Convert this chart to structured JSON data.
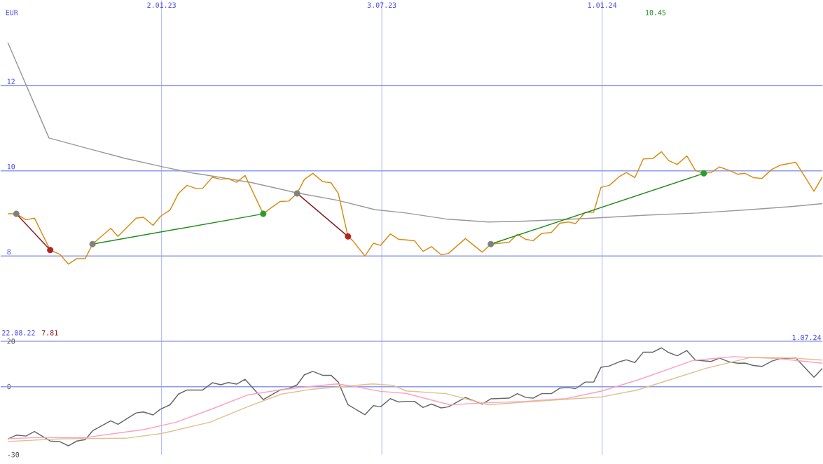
{
  "chart_data": [
    {
      "type": "line",
      "ylabel": "EUR",
      "xlim": [
        "2022-08-22",
        "2024-07-01"
      ],
      "xticks": [
        {
          "value": "2023-01-02",
          "label": "2.01.23"
        },
        {
          "value": "2023-07-03",
          "label": "3.07.23"
        },
        {
          "value": "2024-01-01",
          "label": "1.01.24"
        }
      ],
      "ylim": [
        6,
        14
      ],
      "yticks": [
        8,
        10,
        12
      ],
      "grid": true,
      "annotations": [
        "22.08.22",
        "7.81",
        "10.45",
        "1.07.24"
      ],
      "series": [
        {
          "color": "#999999",
          "x": [
            "2022-08-28",
            "2022-10-01",
            "2022-10-31",
            "2022-12-03",
            "2023-01-02",
            "2023-01-29",
            "2023-02-06",
            "2023-03-18",
            "2023-04-24",
            "2023-05-27",
            "2023-06-27",
            "2023-07-23",
            "2023-08-25",
            "2023-09-29",
            "2023-10-30",
            "2023-12-24",
            "2024-02-06",
            "2024-03-20",
            "2024-05-03",
            "2024-06-05",
            "2024-07-01"
          ],
          "values": [
            13.01,
            10.77,
            10.54,
            10.29,
            10.1,
            9.94,
            9.91,
            9.72,
            9.48,
            9.31,
            9.09,
            9.01,
            8.87,
            8.8,
            8.82,
            8.89,
            8.96,
            9.01,
            9.09,
            9.16,
            9.23
          ]
        },
        {
          "color": "#d98c10",
          "x": [
            "2022-08-28",
            "2022-09-04",
            "2022-09-12",
            "2022-09-19",
            "2022-10-02",
            "2022-10-10",
            "2022-10-17",
            "2022-10-24",
            "2022-10-31",
            "2022-11-06",
            "2022-11-21",
            "2022-11-27",
            "2022-12-12",
            "2022-12-18",
            "2022-12-26",
            "2023-01-01",
            "2023-01-09",
            "2023-01-16",
            "2023-01-23",
            "2023-01-30",
            "2023-02-05",
            "2023-02-13",
            "2023-02-20",
            "2023-02-26",
            "2023-03-05",
            "2023-03-12",
            "2023-03-27",
            "2023-04-02",
            "2023-04-10",
            "2023-04-17",
            "2023-04-24",
            "2023-04-30",
            "2023-05-07",
            "2023-05-15",
            "2023-05-22",
            "2023-05-28",
            "2023-06-05",
            "2023-06-09",
            "2023-06-19",
            "2023-06-26",
            "2023-07-02",
            "2023-07-10",
            "2023-07-17",
            "2023-07-23",
            "2023-07-30",
            "2023-08-06",
            "2023-08-13",
            "2023-08-21",
            "2023-08-27",
            "2023-09-10",
            "2023-09-24",
            "2023-10-01",
            "2023-10-16",
            "2023-10-23",
            "2023-10-30",
            "2023-11-05",
            "2023-11-12",
            "2023-11-20",
            "2023-11-27",
            "2023-12-04",
            "2023-12-10",
            "2023-12-18",
            "2023-12-25",
            "2023-12-31",
            "2024-01-07",
            "2024-01-15",
            "2024-01-21",
            "2024-01-28",
            "2024-02-04",
            "2024-02-12",
            "2024-02-19",
            "2024-02-25",
            "2024-03-03",
            "2024-03-11",
            "2024-03-18",
            "2024-03-25",
            "2024-03-31",
            "2024-04-07",
            "2024-04-15",
            "2024-04-22",
            "2024-04-28",
            "2024-05-05",
            "2024-05-12",
            "2024-05-20",
            "2024-05-27",
            "2024-06-09",
            "2024-06-24",
            "2024-07-01"
          ],
          "values": [
            8.99,
            8.99,
            8.85,
            8.89,
            8.14,
            8.04,
            7.81,
            7.94,
            7.94,
            8.28,
            8.65,
            8.46,
            8.89,
            8.91,
            8.72,
            8.93,
            9.08,
            9.47,
            9.66,
            9.59,
            9.59,
            9.85,
            9.8,
            9.82,
            9.73,
            9.89,
            8.99,
            9.12,
            9.28,
            9.29,
            9.47,
            9.8,
            9.94,
            9.75,
            9.72,
            9.47,
            8.46,
            8.36,
            8.0,
            8.3,
            8.25,
            8.52,
            8.39,
            8.38,
            8.36,
            8.11,
            8.22,
            8.03,
            8.06,
            8.41,
            8.09,
            8.28,
            8.32,
            8.51,
            8.39,
            8.36,
            8.53,
            8.55,
            8.77,
            8.8,
            8.76,
            9.03,
            9.03,
            9.61,
            9.66,
            9.86,
            9.96,
            9.84,
            10.28,
            10.29,
            10.45,
            10.24,
            10.15,
            10.35,
            10.01,
            9.94,
            9.96,
            10.09,
            10.01,
            9.92,
            9.94,
            9.84,
            9.82,
            10.03,
            10.13,
            10.2,
            9.52,
            9.86
          ]
        },
        {
          "color": "#8b1a1a",
          "x": [
            "2022-09-04",
            "2022-10-02"
          ],
          "values": [
            8.99,
            8.14
          ]
        },
        {
          "color": "#1e8c1e",
          "x": [
            "2022-11-06",
            "2023-03-27"
          ],
          "values": [
            8.28,
            8.99
          ]
        },
        {
          "color": "#8b1a1a",
          "x": [
            "2023-04-24",
            "2023-06-05"
          ],
          "values": [
            9.47,
            8.46
          ]
        },
        {
          "color": "#1e8c1e",
          "x": [
            "2023-10-01",
            "2024-03-25"
          ],
          "values": [
            8.28,
            9.94
          ]
        },
        {
          "type": "scatter",
          "marker": "circle",
          "color": "#808080",
          "x": [
            "2022-09-04",
            "2022-11-06",
            "2023-04-24",
            "2023-10-01"
          ],
          "values": [
            8.99,
            8.28,
            9.47,
            8.28
          ]
        },
        {
          "type": "scatter",
          "marker": "circle",
          "color": "#b22222",
          "x": [
            "2022-10-02",
            "2023-06-05"
          ],
          "values": [
            8.14,
            8.46
          ]
        },
        {
          "type": "scatter",
          "marker": "circle",
          "color": "#2a9d2a",
          "x": [
            "2023-03-27",
            "2024-03-25"
          ],
          "values": [
            8.99,
            9.94
          ]
        }
      ]
    },
    {
      "type": "line",
      "tick_labels": "y",
      "xlim": [
        "2022-08-22",
        "2024-07-01"
      ],
      "xticks": [
        {
          "value": "2023-01-02",
          "label": null
        },
        {
          "value": "2023-07-03",
          "label": null
        },
        {
          "value": "2024-01-01",
          "label": null
        }
      ],
      "ylim": [
        -30,
        20
      ],
      "yticks": [
        -30,
        0,
        20
      ],
      "grid": "x",
      "ref_lines": [
        {
          "axis": "y",
          "value": 0,
          "color": "#8c9cf0"
        }
      ],
      "series": [
        {
          "color": "#666666",
          "x": [
            "2022-08-28",
            "2022-09-04",
            "2022-09-12",
            "2022-09-19",
            "2022-10-02",
            "2022-10-10",
            "2022-10-17",
            "2022-10-24",
            "2022-10-31",
            "2022-11-06",
            "2022-11-21",
            "2022-11-27",
            "2022-12-12",
            "2022-12-18",
            "2022-12-26",
            "2023-01-01",
            "2023-01-09",
            "2023-01-16",
            "2023-01-23",
            "2023-02-05",
            "2023-02-13",
            "2023-02-20",
            "2023-02-26",
            "2023-03-05",
            "2023-03-12",
            "2023-03-27",
            "2023-04-10",
            "2023-04-17",
            "2023-04-24",
            "2023-04-30",
            "2023-05-07",
            "2023-05-15",
            "2023-05-22",
            "2023-05-28",
            "2023-06-05",
            "2023-06-19",
            "2023-06-26",
            "2023-07-02",
            "2023-07-10",
            "2023-07-17",
            "2023-07-23",
            "2023-07-30",
            "2023-08-06",
            "2023-08-13",
            "2023-08-21",
            "2023-08-27",
            "2023-09-10",
            "2023-09-24",
            "2023-10-01",
            "2023-10-16",
            "2023-10-23",
            "2023-10-30",
            "2023-11-05",
            "2023-11-12",
            "2023-11-20",
            "2023-11-27",
            "2023-12-04",
            "2023-12-10",
            "2023-12-18",
            "2023-12-25",
            "2023-12-31",
            "2024-01-07",
            "2024-01-15",
            "2024-01-21",
            "2024-01-28",
            "2024-02-04",
            "2024-02-12",
            "2024-02-19",
            "2024-02-25",
            "2024-03-03",
            "2024-03-11",
            "2024-03-18",
            "2024-03-31",
            "2024-04-07",
            "2024-04-15",
            "2024-04-22",
            "2024-04-28",
            "2024-05-05",
            "2024-05-12",
            "2024-05-20",
            "2024-05-27",
            "2024-06-09",
            "2024-06-24",
            "2024-07-01"
          ],
          "values": [
            -23.1,
            -21.4,
            -21.8,
            -19.8,
            -24.0,
            -24.3,
            -26.1,
            -24.0,
            -23.4,
            -19.5,
            -15.1,
            -16.6,
            -11.6,
            -11.2,
            -12.5,
            -10.0,
            -8.0,
            -3.3,
            -1.5,
            -1.5,
            1.7,
            0.8,
            1.8,
            1.1,
            3.2,
            -5.7,
            -1.5,
            -0.9,
            0.8,
            5.2,
            6.7,
            5.0,
            5.0,
            2.0,
            -8.0,
            -12.4,
            -8.4,
            -8.9,
            -5.3,
            -6.8,
            -6.5,
            -6.5,
            -9.2,
            -7.7,
            -9.4,
            -8.9,
            -4.8,
            -7.7,
            -5.4,
            -5.1,
            -3.1,
            -4.8,
            -5.1,
            -3.1,
            -3.1,
            -0.7,
            -0.4,
            -0.9,
            2.0,
            2.0,
            8.5,
            9.1,
            10.9,
            11.8,
            10.6,
            15.2,
            15.2,
            17.1,
            15.0,
            13.6,
            15.9,
            11.7,
            11.1,
            12.6,
            10.9,
            10.3,
            10.4,
            9.3,
            8.9,
            11.2,
            12.4,
            12.6,
            4.1,
            8.1
          ]
        },
        {
          "color": "#ffa0c0",
          "x": [
            "2022-08-28",
            "2022-09-19",
            "2022-10-31",
            "2022-11-24",
            "2022-12-18",
            "2023-01-14",
            "2023-02-13",
            "2023-03-14",
            "2023-04-09",
            "2023-05-07",
            "2023-05-27",
            "2023-06-09",
            "2023-07-02",
            "2023-07-23",
            "2023-08-28",
            "2023-09-25",
            "2023-10-30",
            "2023-12-02",
            "2024-01-01",
            "2024-02-01",
            "2024-03-16",
            "2024-04-18",
            "2024-05-25",
            "2024-07-01"
          ],
          "values": [
            -23.0,
            -22.5,
            -22.5,
            -20.7,
            -19.0,
            -15.7,
            -9.8,
            -3.7,
            -1.5,
            0.2,
            1.2,
            0.2,
            -2.1,
            -3.0,
            -8.0,
            -7.2,
            -6.5,
            -5.3,
            -1.9,
            3.2,
            11.5,
            13.2,
            12.4,
            10.3
          ]
        },
        {
          "color": "#e0c090",
          "x": [
            "2022-08-28",
            "2022-10-11",
            "2022-12-03",
            "2023-01-02",
            "2023-02-11",
            "2023-03-14",
            "2023-04-11",
            "2023-05-07",
            "2023-05-29",
            "2023-06-25",
            "2023-07-12",
            "2023-07-23",
            "2023-08-25",
            "2023-09-29",
            "2023-10-30",
            "2024-01-01",
            "2024-01-30",
            "2024-02-27",
            "2024-03-27",
            "2024-05-03",
            "2024-06-05",
            "2024-07-01"
          ],
          "values": [
            -24.2,
            -23.0,
            -22.8,
            -20.7,
            -15.7,
            -8.9,
            -3.3,
            -1.1,
            -0.1,
            1.2,
            0.6,
            -1.9,
            -3.1,
            -8.0,
            -6.8,
            -4.5,
            -1.5,
            3.2,
            8.1,
            12.9,
            12.6,
            11.7
          ]
        }
      ]
    }
  ]
}
